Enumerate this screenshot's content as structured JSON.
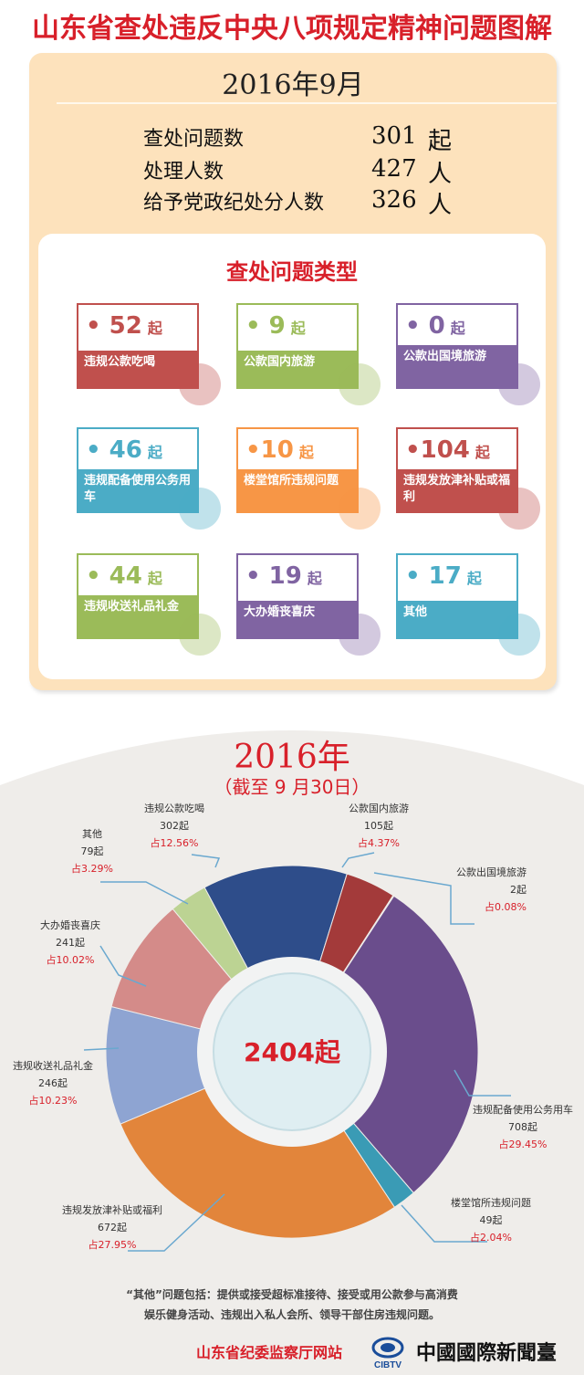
{
  "title": "山东省查处违反中央八项规定精神问题图解",
  "month": {
    "label": "2016年9月",
    "stats": [
      {
        "label": "查处问题数",
        "value": "301",
        "unit": "起"
      },
      {
        "label": "处理人数",
        "value": "427",
        "unit": "人"
      },
      {
        "label": "给予党政纪处分人数",
        "value": "326",
        "unit": "人"
      }
    ],
    "types_title": "查处问题类型",
    "cards": [
      {
        "num": "• 52",
        "unit": "起",
        "label": "违规公款吃喝",
        "color": "#c0504d"
      },
      {
        "num": "•  9",
        "unit": "起",
        "label": "公款国内旅游",
        "color": "#9bbb59"
      },
      {
        "num": "• 0",
        "unit": "起",
        "label": "公款出国境旅游",
        "color": "#8064a2"
      },
      {
        "num": "•  46",
        "unit": "起",
        "label": "违规配备使用公务用车",
        "color": "#4bacc6"
      },
      {
        "num": "•10",
        "unit": "起",
        "label": "楼堂馆所违规问题",
        "color": "#f79646"
      },
      {
        "num": "•104",
        "unit": "起",
        "label": "违规发放津补贴或福利",
        "color": "#c0504d"
      },
      {
        "num": "• 44",
        "unit": "起",
        "label": "违规收送礼品礼金",
        "color": "#9bbb59"
      },
      {
        "num": "• 19",
        "unit": "起",
        "label": "大办婚丧喜庆",
        "color": "#8064a2"
      },
      {
        "num": "• 17",
        "unit": "起",
        "label": "其他",
        "color": "#4bacc6"
      }
    ]
  },
  "year": {
    "title": "2016年",
    "subtitle": "（截至 9 月30日）",
    "center": "2404起"
  },
  "chart_data": {
    "type": "pie",
    "title": "2016年",
    "total": "2404起",
    "slices": [
      {
        "name": "违规公款吃喝",
        "value": 302,
        "count": "302起",
        "pct": "占12.56%",
        "color": "#2e4d8a"
      },
      {
        "name": "公款国内旅游",
        "value": 105,
        "count": "105起",
        "pct": "占4.37%",
        "color": "#a33a3a"
      },
      {
        "name": "公款出国境旅游",
        "value": 2,
        "count": "2起",
        "pct": "占0.08%",
        "color": "#7f9940"
      },
      {
        "name": "违规配备使用公务用车",
        "value": 708,
        "count": "708起",
        "pct": "占29.45%",
        "color": "#6a4d8c"
      },
      {
        "name": "楼堂馆所违规问题",
        "value": 49,
        "count": "49起",
        "pct": "占2.04%",
        "color": "#3a9bb5"
      },
      {
        "name": "违规发放津补贴或福利",
        "value": 672,
        "count": "672起",
        "pct": "占27.95%",
        "color": "#e2853b"
      },
      {
        "name": "违规收送礼品礼金",
        "value": 246,
        "count": "246起",
        "pct": "占10.23%",
        "color": "#8ea4d2"
      },
      {
        "name": "大办婚丧喜庆",
        "value": 241,
        "count": "241起",
        "pct": "占10.02%",
        "color": "#d48b89"
      },
      {
        "name": "其他",
        "value": 79,
        "count": "79起",
        "pct": "占3.29%",
        "color": "#bcd393"
      }
    ]
  },
  "footnote": {
    "line1": "“其他”问题包括：提供或接受超标准接待、接受或用公款参与高消费",
    "line2": "娱乐健身活动、违规出入私人会所、领导干部住房违规问题。"
  },
  "footer": {
    "left": "山东省纪委监察厅网站",
    "right": "中國國際新聞臺",
    "logo_text": "CIBTV"
  }
}
